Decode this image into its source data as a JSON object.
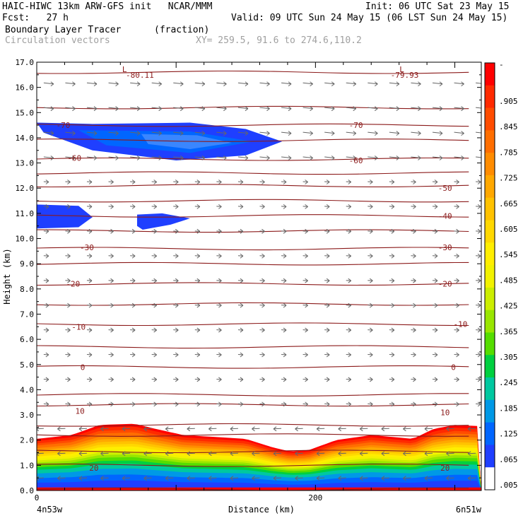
{
  "header": {
    "line1_left": "HAIC-HIWC 13km ARW-GFS init   NCAR/MMM",
    "line1_right": "Init: 06 UTC Sat 23 May 15",
    "line2_left": "Fcst:   27 h",
    "line2_right": "Valid: 09 UTC Sun 24 May 15 (06 LST Sun 24 May 15)",
    "field_name": "Boundary Layer Tracer",
    "field_unit": "(fraction)",
    "overlay_name": "Circulation vectors",
    "xy_label": "XY= 259.5, 91.6 to 274.6,110.2"
  },
  "chart_data": {
    "type": "heatmap",
    "xlabel": "Distance (km)",
    "ylabel": "Height (km)",
    "xlim": [
      0,
      319
    ],
    "ylim": [
      0,
      17
    ],
    "x_ticks": [
      {
        "value": 0,
        "label": "0"
      },
      {
        "value": 200,
        "label": "200"
      }
    ],
    "x_end_labels": {
      "left": "4n53w",
      "right": "6n51w"
    },
    "y_ticks": [
      "0.0",
      "1.0",
      "2.0",
      "3.0",
      "4.0",
      "5.0",
      "6.0",
      "7.0",
      "8.0",
      "9.0",
      "10.0",
      "11.0",
      "12.0",
      "13.0",
      "14.0",
      "15.0",
      "16.0",
      "17.0"
    ],
    "colorbar": {
      "labels": [
        "-",
        ".905",
        ".845",
        ".785",
        ".725",
        ".665",
        ".605",
        ".545",
        ".485",
        ".425",
        ".365",
        ".305",
        ".245",
        ".185",
        ".125",
        ".065",
        ".005"
      ],
      "colors": [
        "#ff0000",
        "#ff2a00",
        "#ff4c00",
        "#ff6e00",
        "#ff8c00",
        "#ffa800",
        "#ffc200",
        "#ffd800",
        "#ffee00",
        "#f2f200",
        "#ccee00",
        "#99e600",
        "#55dd00",
        "#00d040",
        "#00c8a0",
        "#0099e6",
        "#0066ff",
        "#1f3fff",
        "#ffffff"
      ]
    },
    "temperature_labels": [
      {
        "text": "-80.11",
        "x": 74,
        "y": 16.5
      },
      {
        "text": "-79.93",
        "x": 264,
        "y": 16.5
      },
      {
        "text": "L",
        "x": 63,
        "y": 16.72
      },
      {
        "text": "L",
        "x": 262,
        "y": 16.72
      },
      {
        "text": "-70",
        "x": 19,
        "y": 14.5
      },
      {
        "text": "-70",
        "x": 229,
        "y": 14.5
      },
      {
        "text": "-60",
        "x": 27,
        "y": 13.2
      },
      {
        "text": "-60",
        "x": 229,
        "y": 13.1
      },
      {
        "text": "-50",
        "x": 293,
        "y": 12.0
      },
      {
        "text": "-40",
        "x": 293,
        "y": 10.9
      },
      {
        "text": "-30",
        "x": 36,
        "y": 9.65
      },
      {
        "text": "-30",
        "x": 293,
        "y": 9.65
      },
      {
        "text": "-20",
        "x": 26,
        "y": 8.2
      },
      {
        "text": "-20",
        "x": 293,
        "y": 8.2
      },
      {
        "text": "-10",
        "x": 30,
        "y": 6.5
      },
      {
        "text": "-10",
        "x": 304,
        "y": 6.6
      },
      {
        "text": "0",
        "x": 33,
        "y": 4.9
      },
      {
        "text": "0",
        "x": 299,
        "y": 4.9
      },
      {
        "text": "10",
        "x": 31,
        "y": 3.15
      },
      {
        "text": "10",
        "x": 293,
        "y": 3.1
      },
      {
        "text": "20",
        "x": 41,
        "y": 0.9
      },
      {
        "text": "20",
        "x": 293,
        "y": 0.9
      }
    ],
    "isotherm_heights": [
      0.05,
      1.0,
      1.55,
      2.2,
      2.6,
      3.4,
      3.8,
      4.9,
      5.7,
      6.6,
      7.4,
      8.2,
      9.0,
      9.6,
      10.3,
      10.9,
      11.5,
      12.1,
      12.6,
      13.15,
      13.9,
      14.5,
      15.2,
      16.6
    ]
  }
}
